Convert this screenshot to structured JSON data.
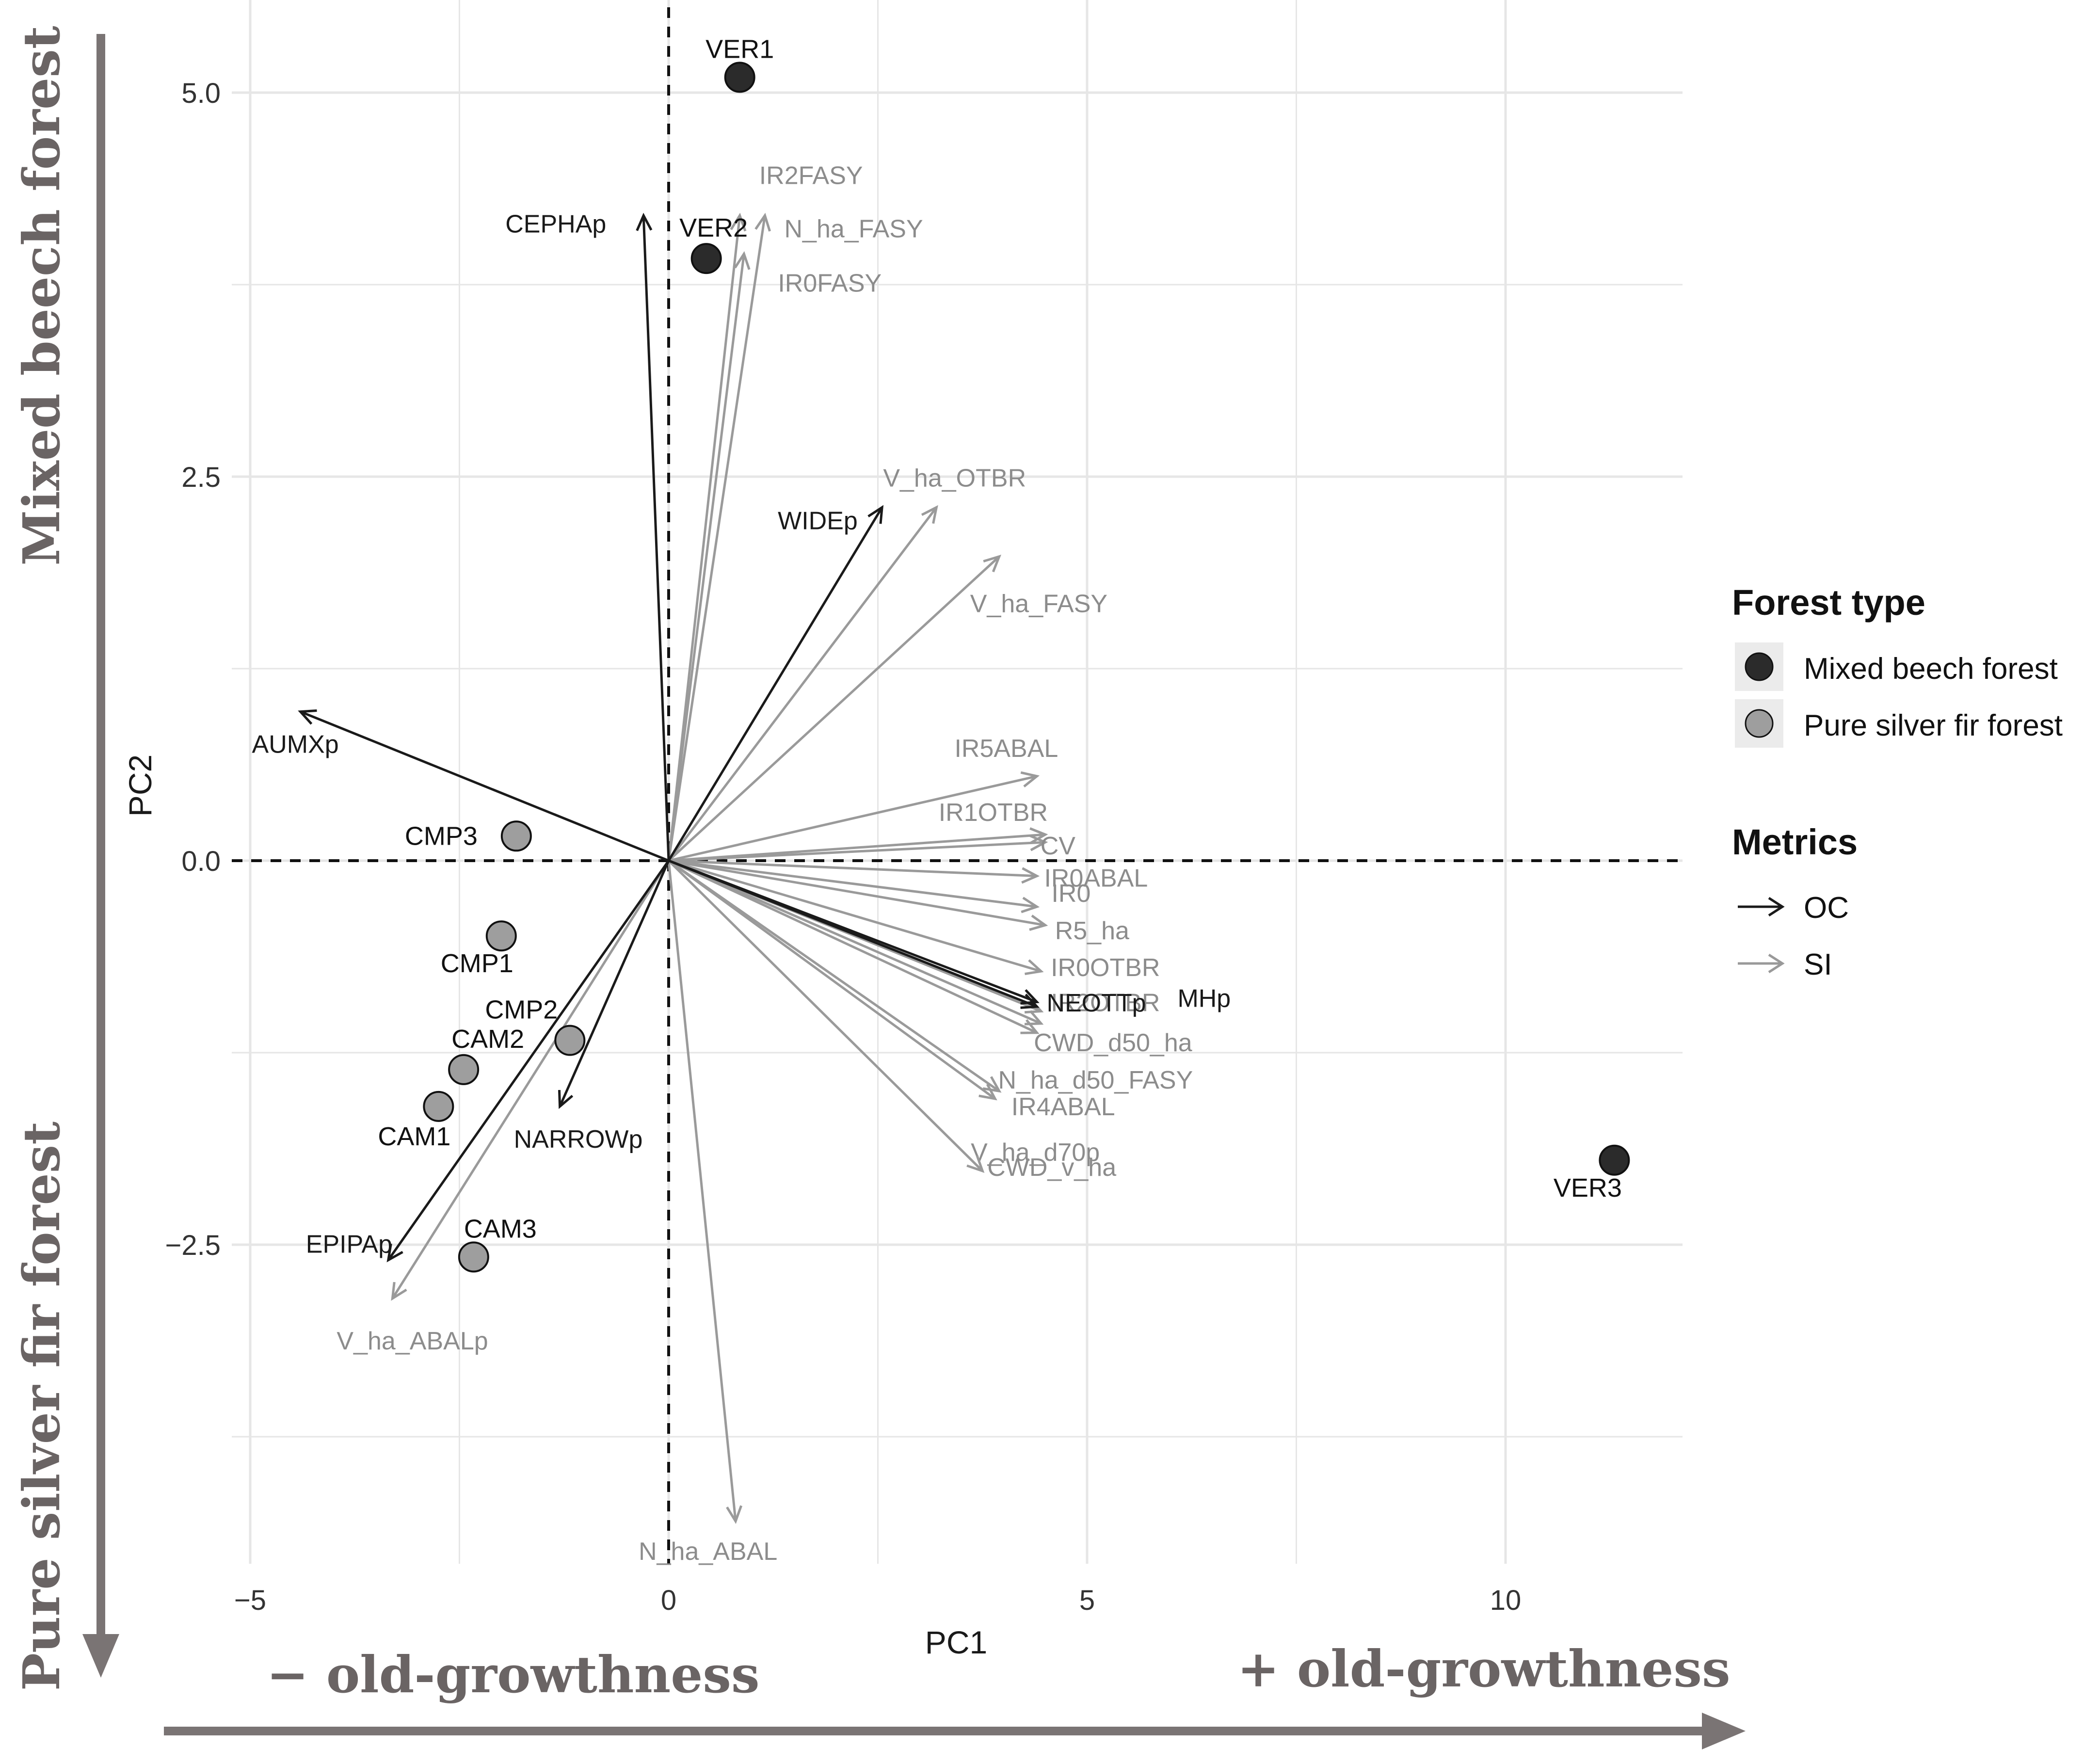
{
  "chart_data": {
    "type": "scatter",
    "title": "",
    "xlabel": "PC1",
    "ylabel": "PC2",
    "xlim": [
      -5,
      12
    ],
    "ylim": [
      -4.5,
      5.5
    ],
    "xticks": [
      {
        "value": -5,
        "label": "−5"
      },
      {
        "value": 0,
        "label": "0"
      },
      {
        "value": 5,
        "label": "5"
      },
      {
        "value": 10,
        "label": "10"
      }
    ],
    "yticks": [
      {
        "value": 5,
        "label": "5.0"
      },
      {
        "value": 2.5,
        "label": "2.5"
      },
      {
        "value": 0,
        "label": "0.0"
      },
      {
        "value": -2.5,
        "label": "−2.5"
      }
    ],
    "grid": true,
    "points": [
      {
        "label": "VER1",
        "x": 0.85,
        "y": 5.1,
        "type": "Mixed beech forest"
      },
      {
        "label": "VER2",
        "x": 0.45,
        "y": 3.92,
        "type": "Mixed beech forest"
      },
      {
        "label": "VER3",
        "x": 11.3,
        "y": -1.95,
        "type": "Mixed beech forest"
      },
      {
        "label": "CMP3",
        "x": -1.82,
        "y": 0.16,
        "type": "Pure silver fir forest"
      },
      {
        "label": "CMP1",
        "x": -2.0,
        "y": -0.49,
        "type": "Pure silver fir forest"
      },
      {
        "label": "CMP2",
        "x": -1.18,
        "y": -1.17,
        "type": "Pure silver fir forest"
      },
      {
        "label": "CAM2",
        "x": -2.45,
        "y": -1.36,
        "type": "Pure silver fir forest"
      },
      {
        "label": "CAM1",
        "x": -2.75,
        "y": -1.6,
        "type": "Pure silver fir forest"
      },
      {
        "label": "CAM3",
        "x": -2.33,
        "y": -2.58,
        "type": "Pure silver fir forest"
      }
    ],
    "vectors": [
      {
        "label": "CEPHAp",
        "x": -0.3,
        "y": 4.2,
        "group": "OC"
      },
      {
        "label": "AUMXp",
        "x": -4.4,
        "y": 0.97,
        "group": "OC"
      },
      {
        "label": "WIDEp",
        "x": 2.55,
        "y": 2.3,
        "group": "OC"
      },
      {
        "label": "NARROWp",
        "x": -1.3,
        "y": -1.6,
        "group": "OC"
      },
      {
        "label": "EPIPAp",
        "x": -3.35,
        "y": -2.6,
        "group": "OC"
      },
      {
        "label": "NEOTTp",
        "x": 4.4,
        "y": -0.95,
        "group": "OC"
      },
      {
        "label": "MHp",
        "x": 4.4,
        "y": -0.92,
        "group": "OC"
      },
      {
        "label": "IR2FASY",
        "x": 0.85,
        "y": 4.2,
        "group": "SI"
      },
      {
        "label": "N_ha_FASY",
        "x": 1.15,
        "y": 4.2,
        "group": "SI"
      },
      {
        "label": "IR0FASY",
        "x": 0.9,
        "y": 3.95,
        "group": "SI"
      },
      {
        "label": "V_ha_OTBR",
        "x": 3.2,
        "y": 2.3,
        "group": "SI"
      },
      {
        "label": "V_ha_FASY",
        "x": 3.95,
        "y": 1.98,
        "group": "SI"
      },
      {
        "label": "IR5ABAL",
        "x": 4.4,
        "y": 0.55,
        "group": "SI"
      },
      {
        "label": "IR1OTBR",
        "x": 4.5,
        "y": 0.17,
        "group": "SI"
      },
      {
        "label": "CV",
        "x": 4.5,
        "y": 0.12,
        "group": "SI"
      },
      {
        "label": "IR0ABAL",
        "x": 4.4,
        "y": -0.1,
        "group": "SI"
      },
      {
        "label": "IR0",
        "x": 4.4,
        "y": -0.3,
        "group": "SI"
      },
      {
        "label": "R5_ha",
        "x": 4.5,
        "y": -0.42,
        "group": "SI"
      },
      {
        "label": "IR0OTBR",
        "x": 4.45,
        "y": -0.72,
        "group": "SI"
      },
      {
        "label": "IR2OTBR",
        "x": 4.45,
        "y": -0.98,
        "group": "SI"
      },
      {
        "label": "CWD_d50_ha",
        "x": 4.45,
        "y": -1.06,
        "group": "SI"
      },
      {
        "label": "N_ha_d50_FASY",
        "x": 4.4,
        "y": -1.12,
        "group": "SI"
      },
      {
        "label": "IR4ABAL",
        "x": 3.95,
        "y": -1.5,
        "group": "SI"
      },
      {
        "label": "V_ha_d70p",
        "x": 3.9,
        "y": -1.55,
        "group": "SI"
      },
      {
        "label": "CWD_v_ha",
        "x": 3.75,
        "y": -2.02,
        "group": "SI"
      },
      {
        "label": "V_ha_ABALp",
        "x": -3.3,
        "y": -2.85,
        "group": "SI"
      },
      {
        "label": "N_ha_ABAL",
        "x": 0.8,
        "y": -4.3,
        "group": "SI"
      }
    ],
    "legend": {
      "position": "right",
      "forest_type_title": "Forest type",
      "forest_types": [
        {
          "name": "Mixed beech forest",
          "color": "#2b2b2b"
        },
        {
          "name": "Pure silver fir forest",
          "color": "#9e9e9e"
        }
      ],
      "metrics_title": "Metrics",
      "metrics": [
        {
          "name": "OC",
          "color": "#1a1a1a"
        },
        {
          "name": "SI",
          "color": "#999999"
        }
      ]
    }
  },
  "annotations": {
    "left_top": "Mixed beech forest",
    "left_bottom": "Pure silver fir  forest",
    "bottom_left": "− old-growthness",
    "bottom_right": "+ old-growthness"
  },
  "colors": {
    "oc_arrow": "#1a1a1a",
    "si_arrow": "#9a9a9a",
    "si_text": "#8c8c8c",
    "mixed_point": "#2b2b2b",
    "pure_point": "#9e9e9e",
    "big_arrow": "#7a7474",
    "annotation_text": "#6a6464",
    "grid": "#e6e6e6"
  }
}
